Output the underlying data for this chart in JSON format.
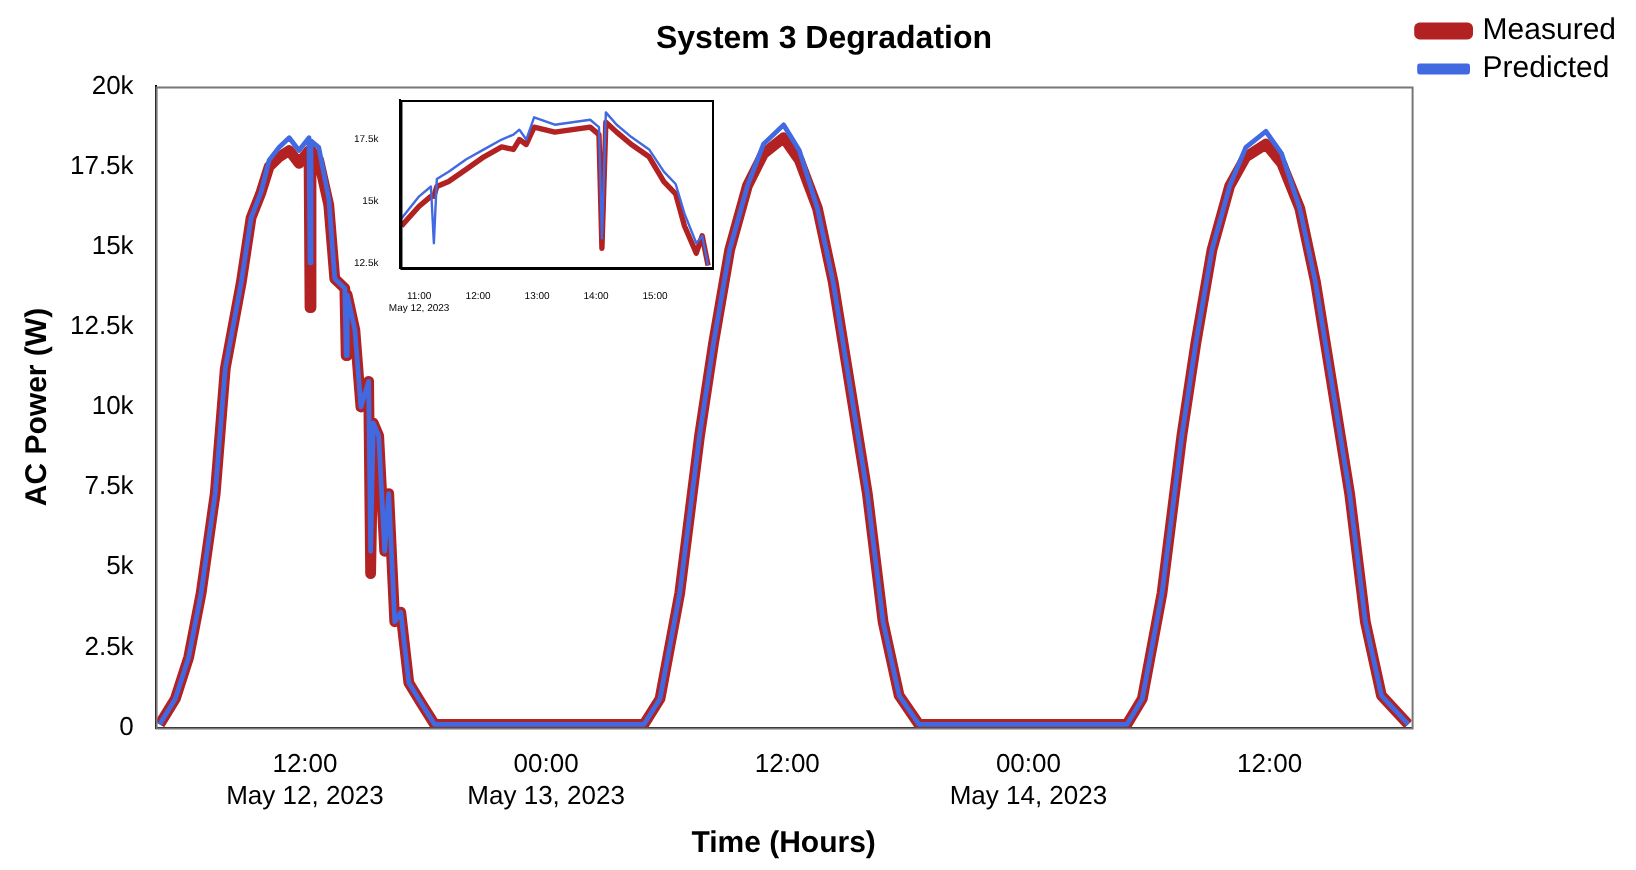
{
  "chart_data": [
    {
      "type": "line",
      "title": "System 3 Degradation",
      "xlabel": "Time (Hours)",
      "ylabel": "AC Power (W)",
      "legend": "top right",
      "grid": false,
      "marker": "none",
      "line_style": "solid",
      "xlim": [
        "2023-05-12T04:34",
        "2023-05-14T19:04"
      ],
      "xticks": [
        {
          "value": "2023-05-12T12:00",
          "label": "12:00\nMay 12, 2023"
        },
        {
          "value": "2023-05-13T00:00",
          "label": "00:00\nMay 13, 2023"
        },
        {
          "value": "2023-05-13T12:00",
          "label": "12:00"
        },
        {
          "value": "2023-05-14T00:00",
          "label": "00:00\nMay 14, 2023"
        },
        {
          "value": "2023-05-14T12:00",
          "label": "12:00"
        }
      ],
      "ylim": [
        0,
        20000
      ],
      "yticks": [
        0,
        {
          "value": 2500,
          "label": "2.5k"
        },
        {
          "value": 5000,
          "label": "5k"
        },
        {
          "value": 7500,
          "label": "7.5k"
        },
        {
          "value": 10000,
          "label": "10k"
        },
        {
          "value": 12500,
          "label": "12.5k"
        },
        {
          "value": 15000,
          "label": "15k"
        },
        {
          "value": 17500,
          "label": "17.5k"
        },
        {
          "value": 20000,
          "label": "20k"
        }
      ],
      "x": [
        "2023-05-12T04:46",
        "2023-05-12T05:33",
        "2023-05-12T06:13",
        "2023-05-12T06:50",
        "2023-05-12T07:32",
        "2023-05-12T08:02",
        "2023-05-12T08:50",
        "2023-05-12T09:19",
        "2023-05-12T09:49",
        "2023-05-12T10:13",
        "2023-05-12T10:43",
        "2023-05-12T11:13",
        "2023-05-12T11:42",
        "2023-05-12T12:12",
        "2023-05-12T12:15",
        "2023-05-12T12:18",
        "2023-05-12T12:41",
        "2023-05-12T13:11",
        "2023-05-12T13:29",
        "2023-05-12T13:59",
        "2023-05-12T14:03",
        "2023-05-12T14:06",
        "2023-05-12T14:29",
        "2023-05-12T14:47",
        "2023-05-12T15:10",
        "2023-05-12T15:16",
        "2023-05-12T15:24",
        "2023-05-12T15:40",
        "2023-05-12T15:58",
        "2023-05-12T16:10",
        "2023-05-12T16:28",
        "2023-05-12T16:46",
        "2023-05-12T17:10",
        "2023-05-12T17:45",
        "2023-05-12T18:27",
        "2023-05-12T23:00",
        "2023-05-13T04:52",
        "2023-05-13T05:40",
        "2023-05-13T06:39",
        "2023-05-13T07:38",
        "2023-05-13T08:20",
        "2023-05-13T09:08",
        "2023-05-13T10:01",
        "2023-05-13T10:49",
        "2023-05-13T11:49",
        "2023-05-13T12:36",
        "2023-05-13T13:30",
        "2023-05-13T14:17",
        "2023-05-13T15:05",
        "2023-05-13T15:59",
        "2023-05-13T16:46",
        "2023-05-13T17:34",
        "2023-05-13T18:33",
        "2023-05-14T00:00",
        "2023-05-14T04:54",
        "2023-05-14T05:40",
        "2023-05-14T06:39",
        "2023-05-14T07:38",
        "2023-05-14T08:20",
        "2023-05-14T09:08",
        "2023-05-14T10:01",
        "2023-05-14T10:49",
        "2023-05-14T11:49",
        "2023-05-14T12:36",
        "2023-05-14T13:30",
        "2023-05-14T14:17",
        "2023-05-14T15:05",
        "2023-05-14T15:59",
        "2023-05-14T16:46",
        "2023-05-14T17:34",
        "2023-05-14T18:54"
      ],
      "series": [
        {
          "name": "Measured",
          "color": "#b22222",
          "values": [
            100,
            900,
            2200,
            4200,
            7300,
            11200,
            13900,
            15900,
            16700,
            17500,
            17800,
            18000,
            17600,
            18000,
            13100,
            18000,
            17700,
            16300,
            14000,
            13700,
            11600,
            13500,
            12400,
            10000,
            10800,
            4800,
            9500,
            9100,
            5500,
            7300,
            3300,
            3600,
            1400,
            800,
            100,
            100,
            100,
            900,
            4200,
            9100,
            12000,
            14900,
            16900,
            17900,
            18400,
            17700,
            16200,
            13900,
            10800,
            7300,
            3300,
            1000,
            100,
            100,
            100,
            900,
            4200,
            9100,
            12000,
            14900,
            16900,
            17800,
            18200,
            17600,
            16200,
            13900,
            10800,
            7300,
            3300,
            1000,
            100
          ]
        },
        {
          "name": "Predicted",
          "color": "#4169e1",
          "values": [
            100,
            900,
            2200,
            4200,
            7300,
            11200,
            13900,
            15900,
            16700,
            17700,
            18100,
            18400,
            18000,
            18400,
            14500,
            18300,
            18100,
            16500,
            14000,
            13700,
            11600,
            13500,
            12400,
            10000,
            10800,
            5500,
            9500,
            9100,
            5500,
            7300,
            3300,
            3600,
            1400,
            800,
            100,
            100,
            100,
            900,
            4200,
            9100,
            12000,
            14900,
            16900,
            18200,
            18800,
            18000,
            16200,
            13900,
            10800,
            7300,
            3300,
            1000,
            100,
            100,
            100,
            900,
            4200,
            9100,
            12000,
            14900,
            16900,
            18100,
            18600,
            17900,
            16200,
            13900,
            10800,
            7300,
            3300,
            1000,
            100
          ]
        }
      ]
    },
    {
      "type": "line",
      "legend": false,
      "grid": false,
      "marker": "none",
      "line_style": "solid",
      "xlim": [
        "2023-05-12T10:41",
        "2023-05-12T15:58"
      ],
      "xticks": [
        {
          "value": "2023-05-12T11:00",
          "label": "11:00\nMay 12, 2023"
        },
        {
          "value": "2023-05-12T12:00",
          "label": "12:00"
        },
        {
          "value": "2023-05-12T13:00",
          "label": "13:00"
        },
        {
          "value": "2023-05-12T14:00",
          "label": "14:00"
        },
        {
          "value": "2023-05-12T15:00",
          "label": "15:00"
        }
      ],
      "ylim": [
        12300,
        19100
      ],
      "yticks": [
        {
          "value": 12500,
          "label": "12.5k"
        },
        {
          "value": 15000,
          "label": "15k"
        },
        {
          "value": 17500,
          "label": "17.5k"
        }
      ],
      "x": [
        "2023-05-12T10:42",
        "2023-05-12T11:00",
        "2023-05-12T11:12",
        "2023-05-12T11:15",
        "2023-05-12T11:18",
        "2023-05-12T11:30",
        "2023-05-12T11:48",
        "2023-05-12T12:06",
        "2023-05-12T12:24",
        "2023-05-12T12:36",
        "2023-05-12T12:42",
        "2023-05-12T12:49",
        "2023-05-12T12:57",
        "2023-05-12T13:18",
        "2023-05-12T13:36",
        "2023-05-12T13:54",
        "2023-05-12T14:03",
        "2023-05-12T14:06",
        "2023-05-12T14:10",
        "2023-05-12T14:21",
        "2023-05-12T14:36",
        "2023-05-12T14:54",
        "2023-05-12T15:09",
        "2023-05-12T15:21",
        "2023-05-12T15:30",
        "2023-05-12T15:42",
        "2023-05-12T15:48",
        "2023-05-12T15:54"
      ],
      "series": [
        {
          "color": "#b22222",
          "values": [
            14000,
            14800,
            15200,
            15200,
            15600,
            15800,
            16300,
            16800,
            17200,
            17100,
            17500,
            17300,
            18000,
            17800,
            17900,
            18000,
            17700,
            13100,
            18200,
            17800,
            17300,
            16800,
            15800,
            15300,
            14000,
            12900,
            13600,
            12400
          ]
        },
        {
          "color": "#4169e1",
          "values": [
            14300,
            15200,
            15600,
            13300,
            15900,
            16200,
            16700,
            17100,
            17500,
            17700,
            17900,
            17500,
            18400,
            18100,
            18200,
            18300,
            18000,
            13500,
            18600,
            18100,
            17600,
            17100,
            16200,
            15700,
            14500,
            13300,
            13600,
            12400
          ]
        }
      ]
    }
  ]
}
